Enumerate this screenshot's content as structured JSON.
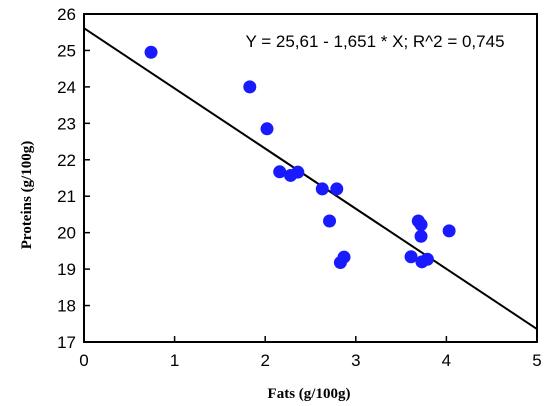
{
  "chart_data": {
    "type": "scatter",
    "title": "",
    "xlabel": "Fats  (g/100g)",
    "ylabel": "Proteins (g/100g)",
    "xlim": [
      0,
      5
    ],
    "ylim": [
      17,
      26
    ],
    "xticks": [
      0,
      1,
      2,
      3,
      4,
      5
    ],
    "yticks": [
      17,
      18,
      19,
      20,
      21,
      22,
      23,
      24,
      25,
      26
    ],
    "grid": false,
    "annotation": "Y = 25,61 - 1,651 * X; R^2 = 0,745",
    "points": [
      {
        "x": 0.74,
        "y": 24.95
      },
      {
        "x": 1.83,
        "y": 24.0
      },
      {
        "x": 2.02,
        "y": 22.85
      },
      {
        "x": 2.16,
        "y": 21.67
      },
      {
        "x": 2.28,
        "y": 21.57
      },
      {
        "x": 2.36,
        "y": 21.66
      },
      {
        "x": 2.63,
        "y": 21.2
      },
      {
        "x": 2.71,
        "y": 20.32
      },
      {
        "x": 2.79,
        "y": 21.2
      },
      {
        "x": 2.83,
        "y": 19.18
      },
      {
        "x": 2.87,
        "y": 19.33
      },
      {
        "x": 3.61,
        "y": 19.34
      },
      {
        "x": 3.69,
        "y": 20.32
      },
      {
        "x": 3.72,
        "y": 20.22
      },
      {
        "x": 3.72,
        "y": 19.9
      },
      {
        "x": 3.73,
        "y": 19.2
      },
      {
        "x": 3.79,
        "y": 19.27
      },
      {
        "x": 4.03,
        "y": 20.05
      }
    ],
    "fit_line": {
      "intercept": 25.61,
      "slope": -1.651
    },
    "colors": {
      "points": "#1a1aff",
      "line": "#000000",
      "axis": "#000000"
    }
  }
}
